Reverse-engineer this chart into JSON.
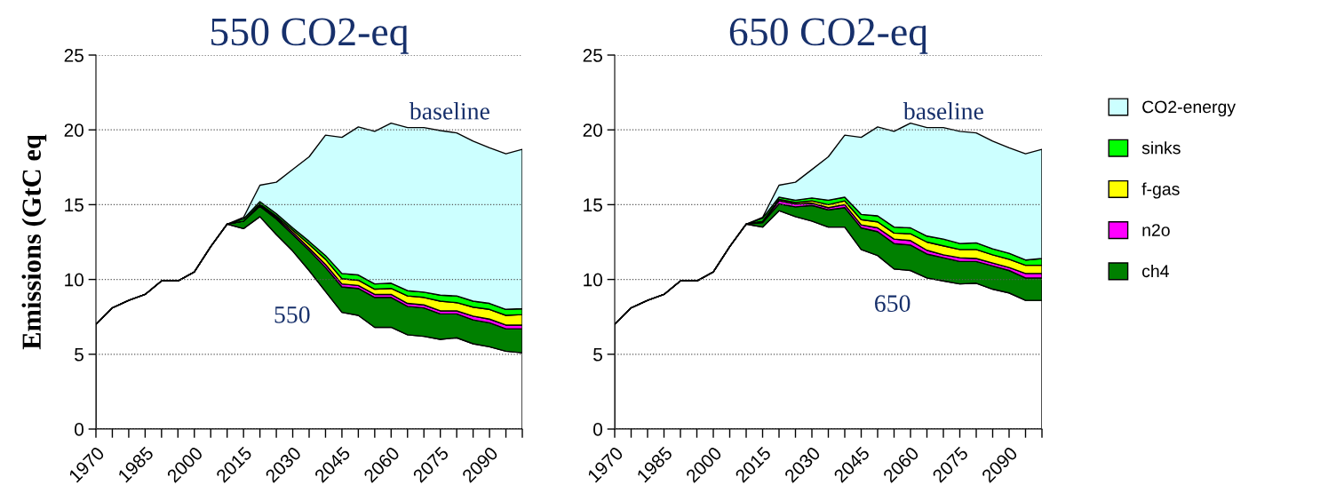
{
  "chart_data": [
    {
      "type": "area",
      "stacked": true,
      "title": "550 CO2-eq",
      "ylabel": "Emissions (GtC eq",
      "x": [
        1970,
        1975,
        1980,
        1985,
        1990,
        1995,
        2000,
        2005,
        2010,
        2015,
        2020,
        2025,
        2030,
        2035,
        2040,
        2045,
        2050,
        2055,
        2060,
        2065,
        2070,
        2075,
        2080,
        2085,
        2090,
        2095,
        2100
      ],
      "xlim": [
        1970,
        2100
      ],
      "xticks": [
        1970,
        {
          "value": 1975,
          "label": null
        },
        {
          "value": 1980,
          "label": null
        },
        1985,
        {
          "value": 1990,
          "label": null
        },
        {
          "value": 1995,
          "label": null
        },
        2000,
        {
          "value": 2005,
          "label": null
        },
        {
          "value": 2010,
          "label": null
        },
        2015,
        {
          "value": 2020,
          "label": null
        },
        {
          "value": 2025,
          "label": null
        },
        2030,
        {
          "value": 2035,
          "label": null
        },
        {
          "value": 2040,
          "label": null
        },
        2045,
        {
          "value": 2050,
          "label": null
        },
        {
          "value": 2055,
          "label": null
        },
        2060,
        {
          "value": 2065,
          "label": null
        },
        {
          "value": 2070,
          "label": null
        },
        2075,
        {
          "value": 2080,
          "label": null
        },
        {
          "value": 2085,
          "label": null
        },
        2090,
        {
          "value": 2095,
          "label": null
        },
        {
          "value": 2100,
          "label": null
        }
      ],
      "ylim": [
        0,
        25
      ],
      "yticks": [
        0,
        5,
        10,
        15,
        20,
        25
      ],
      "grid": "y",
      "series": [
        {
          "color": "#ffffff",
          "values": [
            7.0,
            8.1,
            8.6,
            9.0,
            9.9,
            9.9,
            10.5,
            12.2,
            13.7,
            13.4,
            14.2,
            13.0,
            11.9,
            10.6,
            9.2,
            7.8,
            7.6,
            6.8,
            6.8,
            6.3,
            6.2,
            6.0,
            6.1,
            5.7,
            5.5,
            5.2,
            5.1
          ]
        },
        {
          "color": "#008000",
          "values": [
            0,
            0,
            0,
            0,
            0,
            0,
            0,
            0,
            0,
            0.5,
            0.7,
            1.05,
            1.1,
            1.35,
            1.6,
            1.7,
            1.8,
            2.0,
            2.0,
            1.9,
            1.9,
            1.7,
            1.6,
            1.6,
            1.6,
            1.5,
            1.6
          ]
        },
        {
          "color": "#ff00ff",
          "values": [
            0,
            0,
            0,
            0,
            0,
            0,
            0,
            0,
            0,
            0,
            0.1,
            0.1,
            0.15,
            0.15,
            0.2,
            0.2,
            0.2,
            0.2,
            0.2,
            0.2,
            0.2,
            0.2,
            0.2,
            0.25,
            0.25,
            0.25,
            0.25
          ]
        },
        {
          "color": "#ffff00",
          "values": [
            0,
            0,
            0,
            0,
            0,
            0,
            0,
            0,
            0,
            0,
            0.05,
            0.1,
            0.15,
            0.25,
            0.35,
            0.35,
            0.35,
            0.35,
            0.4,
            0.5,
            0.5,
            0.65,
            0.55,
            0.6,
            0.65,
            0.65,
            0.7
          ]
        },
        {
          "color": "#00ff00",
          "values": [
            0,
            0,
            0,
            0,
            0,
            0,
            0,
            0,
            0,
            0.15,
            0.15,
            0.15,
            0.15,
            0.2,
            0.25,
            0.35,
            0.35,
            0.35,
            0.35,
            0.35,
            0.35,
            0.4,
            0.45,
            0.4,
            0.4,
            0.4,
            0.4
          ]
        },
        {
          "color": "#ccffff",
          "values": [
            0,
            0,
            0,
            0,
            0,
            0,
            0,
            0,
            0,
            0.1,
            1.1,
            2.1,
            3.9,
            5.65,
            8.05,
            9.1,
            9.9,
            10.2,
            10.7,
            10.9,
            11.0,
            11.0,
            10.9,
            10.7,
            10.4,
            10.4,
            10.65
          ]
        }
      ],
      "annotations": [
        "baseline",
        "550"
      ]
    },
    {
      "type": "area",
      "stacked": true,
      "title": "650 CO2-eq",
      "x": [
        1970,
        1975,
        1980,
        1985,
        1990,
        1995,
        2000,
        2005,
        2010,
        2015,
        2020,
        2025,
        2030,
        2035,
        2040,
        2045,
        2050,
        2055,
        2060,
        2065,
        2070,
        2075,
        2080,
        2085,
        2090,
        2095,
        2100
      ],
      "xlim": [
        1970,
        2100
      ],
      "xticks": [
        1970,
        {
          "value": 1975,
          "label": null
        },
        {
          "value": 1980,
          "label": null
        },
        1985,
        {
          "value": 1990,
          "label": null
        },
        {
          "value": 1995,
          "label": null
        },
        2000,
        {
          "value": 2005,
          "label": null
        },
        {
          "value": 2010,
          "label": null
        },
        2015,
        {
          "value": 2020,
          "label": null
        },
        {
          "value": 2025,
          "label": null
        },
        2030,
        {
          "value": 2035,
          "label": null
        },
        {
          "value": 2040,
          "label": null
        },
        2045,
        {
          "value": 2050,
          "label": null
        },
        {
          "value": 2055,
          "label": null
        },
        2060,
        {
          "value": 2065,
          "label": null
        },
        {
          "value": 2070,
          "label": null
        },
        2075,
        {
          "value": 2080,
          "label": null
        },
        {
          "value": 2085,
          "label": null
        },
        2090,
        {
          "value": 2095,
          "label": null
        },
        {
          "value": 2100,
          "label": null
        }
      ],
      "ylim": [
        0,
        25
      ],
      "yticks": [
        0,
        5,
        10,
        15,
        20,
        25
      ],
      "grid": "y",
      "legend": "right",
      "series": [
        {
          "color": "#ffffff",
          "values": [
            7.0,
            8.1,
            8.6,
            9.0,
            9.9,
            9.9,
            10.5,
            12.2,
            13.7,
            13.5,
            14.6,
            14.2,
            13.9,
            13.5,
            13.5,
            12.0,
            11.6,
            10.7,
            10.6,
            10.1,
            9.9,
            9.7,
            9.75,
            9.35,
            9.1,
            8.6,
            8.6
          ]
        },
        {
          "name": "ch4",
          "color": "#008000",
          "values": [
            0,
            0,
            0,
            0,
            0,
            0,
            0,
            0,
            0,
            0.3,
            0.45,
            0.65,
            1.05,
            1.15,
            1.3,
            1.45,
            1.6,
            1.7,
            1.7,
            1.6,
            1.55,
            1.5,
            1.45,
            1.55,
            1.5,
            1.5,
            1.5
          ]
        },
        {
          "name": "n2o",
          "color": "#ff00ff",
          "values": [
            0,
            0,
            0,
            0,
            0,
            0,
            0,
            0,
            0,
            0.05,
            0.2,
            0.2,
            0.15,
            0.15,
            0.2,
            0.2,
            0.25,
            0.3,
            0.3,
            0.25,
            0.2,
            0.25,
            0.2,
            0.2,
            0.2,
            0.3,
            0.3
          ]
        },
        {
          "name": "f-gas",
          "color": "#ffff00",
          "values": [
            0,
            0,
            0,
            0,
            0,
            0,
            0,
            0,
            0,
            0.05,
            0.1,
            0.1,
            0.15,
            0.2,
            0.25,
            0.35,
            0.4,
            0.4,
            0.45,
            0.55,
            0.6,
            0.55,
            0.6,
            0.55,
            0.55,
            0.55,
            0.55
          ]
        },
        {
          "name": "sinks",
          "color": "#00ff00",
          "values": [
            0,
            0,
            0,
            0,
            0,
            0,
            0,
            0,
            0,
            0.2,
            0.15,
            0.15,
            0.2,
            0.3,
            0.25,
            0.35,
            0.4,
            0.4,
            0.4,
            0.4,
            0.45,
            0.4,
            0.45,
            0.4,
            0.4,
            0.35,
            0.45
          ]
        },
        {
          "name": "CO2-energy",
          "color": "#ccffff",
          "values": [
            0,
            0,
            0,
            0,
            0,
            0,
            0,
            0,
            0,
            0.05,
            0.8,
            1.2,
            1.9,
            2.9,
            4.15,
            5.15,
            5.95,
            6.4,
            7.0,
            7.25,
            7.45,
            7.5,
            7.35,
            7.2,
            7.05,
            7.1,
            7.3
          ]
        }
      ],
      "annotations": [
        "baseline",
        "650"
      ]
    }
  ]
}
